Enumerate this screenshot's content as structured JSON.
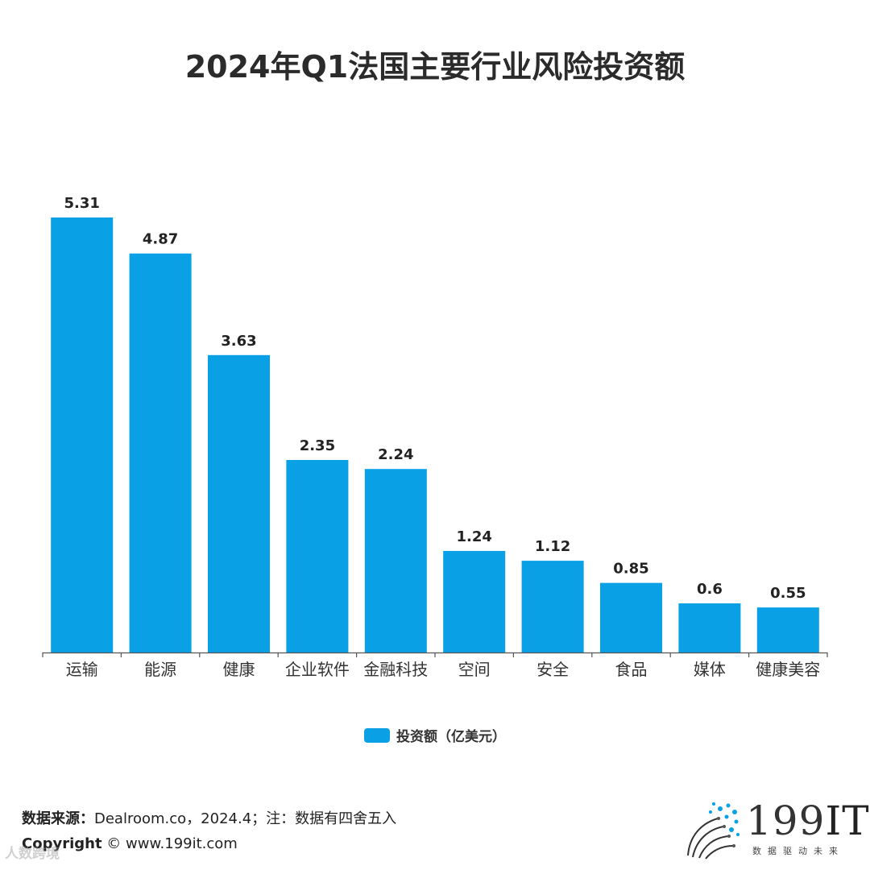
{
  "chart_data": {
    "type": "bar",
    "title": "2024年Q1法国主要行业风险投资额",
    "categories": [
      "运输",
      "能源",
      "健康",
      "企业软件",
      "金融科技",
      "空间",
      "安全",
      "食品",
      "媒体",
      "健康美容"
    ],
    "values": [
      5.31,
      4.87,
      3.63,
      2.35,
      2.24,
      1.24,
      1.12,
      0.85,
      0.6,
      0.55
    ],
    "value_labels": [
      "5.31",
      "4.87",
      "3.63",
      "2.35",
      "2.24",
      "1.24",
      "1.12",
      "0.85",
      "0.6",
      "0.55"
    ],
    "series_name": "投资额（亿美元）",
    "ylim": [
      0,
      5.31
    ],
    "grid": false,
    "legend_position": "bottom",
    "bar_color": "#0aa0e6"
  },
  "footer": {
    "source_label": "数据来源：",
    "source_text": "Dealroom.co，2024.4；注：数据有四舍五入",
    "copyright_label": "Copyright",
    "copyright_text": "© www.199it.com"
  },
  "watermark": "人数跨境",
  "logo": {
    "text_num": "199",
    "text_it": "IT",
    "tagline": "数据驱动未来",
    "color": "#0aa0e6"
  }
}
